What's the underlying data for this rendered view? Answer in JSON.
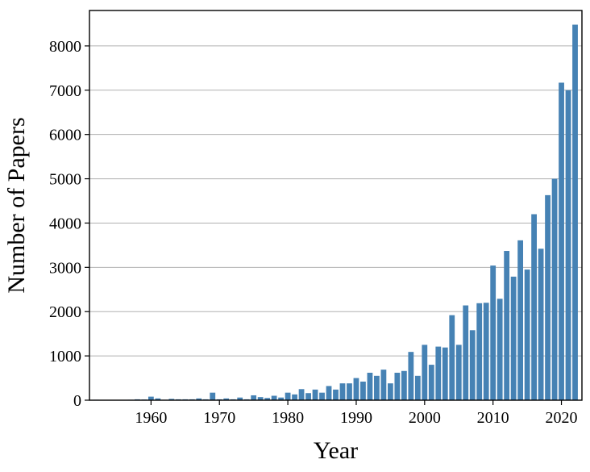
{
  "chart_data": {
    "type": "bar",
    "title": "",
    "xlabel": "Year",
    "ylabel": "Number of Papers",
    "xlim": [
      1951,
      2023
    ],
    "ylim": [
      0,
      8800
    ],
    "xticks": [
      1960,
      1970,
      1980,
      1990,
      2000,
      2010,
      2020
    ],
    "yticks": [
      0,
      1000,
      2000,
      3000,
      4000,
      5000,
      6000,
      7000,
      8000
    ],
    "grid": "horizontal",
    "bar_color": "#4682b4",
    "x": [
      1952,
      1953,
      1954,
      1955,
      1956,
      1957,
      1958,
      1959,
      1960,
      1961,
      1962,
      1963,
      1964,
      1965,
      1966,
      1967,
      1968,
      1969,
      1970,
      1971,
      1972,
      1973,
      1974,
      1975,
      1976,
      1977,
      1978,
      1979,
      1980,
      1981,
      1982,
      1983,
      1984,
      1985,
      1986,
      1987,
      1988,
      1989,
      1990,
      1991,
      1992,
      1993,
      1994,
      1995,
      1996,
      1997,
      1998,
      1999,
      2000,
      2001,
      2002,
      2003,
      2004,
      2005,
      2006,
      2007,
      2008,
      2009,
      2010,
      2011,
      2012,
      2013,
      2014,
      2015,
      2016,
      2017,
      2018,
      2019,
      2020,
      2021,
      2022
    ],
    "values": [
      10,
      5,
      5,
      5,
      5,
      10,
      20,
      15,
      80,
      40,
      10,
      30,
      20,
      20,
      20,
      40,
      20,
      170,
      20,
      40,
      20,
      60,
      20,
      110,
      70,
      50,
      100,
      60,
      170,
      130,
      250,
      160,
      240,
      170,
      320,
      240,
      380,
      380,
      500,
      420,
      620,
      550,
      690,
      380,
      620,
      660,
      1090,
      550,
      1250,
      800,
      1210,
      1190,
      1920,
      1250,
      2140,
      1580,
      2190,
      2200,
      3040,
      2290,
      3370,
      2790,
      3610,
      2950,
      4200,
      3420,
      4630,
      5000,
      7170,
      7000,
      8480
    ]
  }
}
